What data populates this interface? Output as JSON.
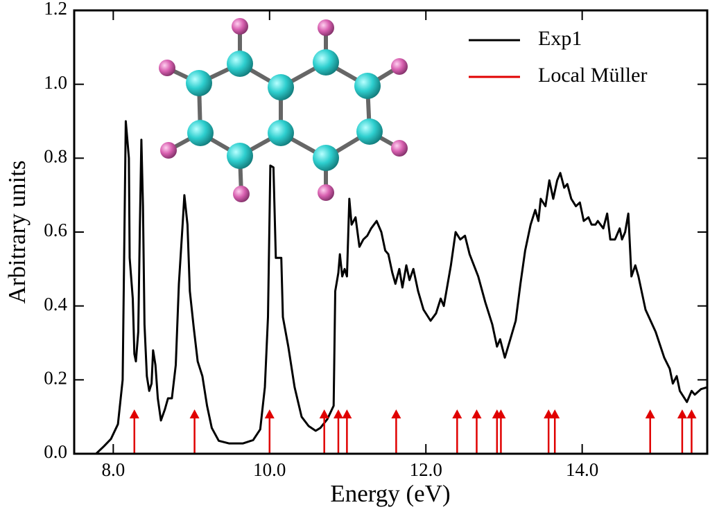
{
  "chart_data": {
    "type": "line",
    "xlabel": "Energy (eV)",
    "ylabel": "Arbitrary units",
    "xlim": [
      7.5,
      15.6
    ],
    "ylim": [
      0,
      1.2
    ],
    "xticks": [
      {
        "value": 8,
        "label": "8.0"
      },
      {
        "value": 10,
        "label": "10.0"
      },
      {
        "value": 12,
        "label": "12.0"
      },
      {
        "value": 14,
        "label": "14.0"
      }
    ],
    "yticks": [
      {
        "value": 0,
        "label": "0.0"
      },
      0.2,
      0.4,
      0.6,
      0.8,
      {
        "value": 1,
        "label": "1.0"
      },
      1.2
    ],
    "legend": "upper right",
    "series": [
      {
        "name": "Exp1",
        "color": "#000000",
        "kind": "line",
        "x": [
          7.78,
          7.88,
          7.97,
          8.06,
          8.12,
          8.16,
          8.2,
          8.21,
          8.25,
          8.27,
          8.29,
          8.32,
          8.34,
          8.36,
          8.38,
          8.4,
          8.43,
          8.46,
          8.49,
          8.51,
          8.54,
          8.57,
          8.61,
          8.66,
          8.7,
          8.75,
          8.8,
          8.84,
          8.89,
          8.91,
          8.95,
          8.98,
          9.03,
          9.08,
          9.14,
          9.2,
          9.26,
          9.35,
          9.48,
          9.66,
          9.79,
          9.88,
          9.94,
          9.98,
          10.01,
          10.05,
          10.08,
          10.15,
          10.17,
          10.24,
          10.32,
          10.41,
          10.5,
          10.59,
          10.65,
          10.74,
          10.82,
          10.84,
          10.88,
          10.9,
          10.93,
          10.96,
          10.99,
          11.02,
          11.05,
          11.1,
          11.15,
          11.2,
          11.25,
          11.3,
          11.37,
          11.43,
          11.48,
          11.52,
          11.57,
          11.61,
          11.66,
          11.7,
          11.75,
          11.79,
          11.84,
          11.9,
          11.97,
          12.06,
          12.13,
          12.19,
          12.23,
          12.32,
          12.38,
          12.44,
          12.5,
          12.56,
          12.67,
          12.76,
          12.85,
          12.91,
          12.95,
          13.01,
          13.08,
          13.15,
          13.21,
          13.27,
          13.34,
          13.4,
          13.44,
          13.47,
          13.53,
          13.58,
          13.63,
          13.68,
          13.72,
          13.77,
          13.81,
          13.86,
          13.92,
          13.97,
          14.02,
          14.08,
          14.12,
          14.17,
          14.2,
          14.27,
          14.32,
          14.36,
          14.42,
          14.48,
          14.51,
          14.55,
          14.59,
          14.63,
          14.68,
          14.72,
          14.81,
          14.94,
          15.05,
          15.12,
          15.16,
          15.21,
          15.25,
          15.34,
          15.4,
          15.44,
          15.52,
          15.6
        ],
        "values": [
          0,
          0.02,
          0.04,
          0.08,
          0.2,
          0.9,
          0.8,
          0.53,
          0.42,
          0.27,
          0.25,
          0.33,
          0.61,
          0.85,
          0.67,
          0.35,
          0.21,
          0.17,
          0.19,
          0.28,
          0.24,
          0.15,
          0.09,
          0.12,
          0.15,
          0.15,
          0.24,
          0.46,
          0.63,
          0.7,
          0.62,
          0.44,
          0.34,
          0.25,
          0.21,
          0.13,
          0.07,
          0.035,
          0.028,
          0.028,
          0.037,
          0.066,
          0.18,
          0.37,
          0.78,
          0.775,
          0.53,
          0.53,
          0.37,
          0.29,
          0.18,
          0.1,
          0.075,
          0.062,
          0.07,
          0.094,
          0.13,
          0.44,
          0.49,
          0.54,
          0.48,
          0.5,
          0.48,
          0.69,
          0.62,
          0.64,
          0.56,
          0.58,
          0.59,
          0.61,
          0.63,
          0.6,
          0.55,
          0.54,
          0.49,
          0.46,
          0.5,
          0.45,
          0.51,
          0.47,
          0.5,
          0.44,
          0.39,
          0.36,
          0.38,
          0.42,
          0.4,
          0.51,
          0.6,
          0.58,
          0.59,
          0.54,
          0.48,
          0.41,
          0.35,
          0.29,
          0.31,
          0.26,
          0.31,
          0.36,
          0.46,
          0.55,
          0.62,
          0.66,
          0.63,
          0.69,
          0.67,
          0.74,
          0.69,
          0.74,
          0.76,
          0.72,
          0.73,
          0.69,
          0.67,
          0.68,
          0.63,
          0.64,
          0.62,
          0.62,
          0.63,
          0.61,
          0.65,
          0.58,
          0.58,
          0.61,
          0.58,
          0.6,
          0.65,
          0.48,
          0.51,
          0.48,
          0.39,
          0.33,
          0.26,
          0.23,
          0.19,
          0.21,
          0.17,
          0.14,
          0.17,
          0.16,
          0.175,
          0.18
        ]
      },
      {
        "name": "Local Müller",
        "color": "#e00000",
        "kind": "arrows",
        "x": [
          8.27,
          9.04,
          10.0,
          10.7,
          10.88,
          10.99,
          11.62,
          12.4,
          12.65,
          12.91,
          12.96,
          13.57,
          13.65,
          14.87,
          15.28,
          15.4
        ],
        "values": [
          0.12,
          0.12,
          0.12,
          0.12,
          0.12,
          0.12,
          0.12,
          0.12,
          0.12,
          0.12,
          0.12,
          0.12,
          0.12,
          0.12,
          0.12,
          0.12
        ]
      }
    ]
  }
}
